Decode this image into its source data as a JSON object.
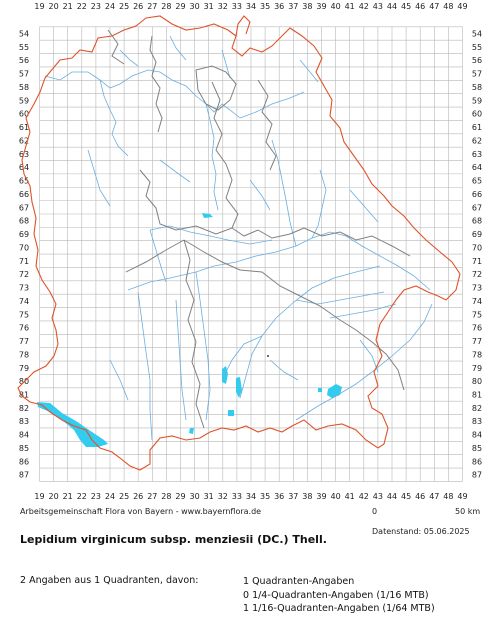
{
  "map": {
    "x_labels": [
      "19",
      "20",
      "21",
      "22",
      "23",
      "24",
      "25",
      "26",
      "27",
      "28",
      "29",
      "30",
      "31",
      "32",
      "33",
      "34",
      "35",
      "36",
      "37",
      "38",
      "39",
      "40",
      "41",
      "42",
      "43",
      "44",
      "45",
      "46",
      "47",
      "48",
      "49"
    ],
    "y_labels": [
      "54",
      "55",
      "56",
      "57",
      "58",
      "59",
      "60",
      "61",
      "62",
      "63",
      "64",
      "65",
      "66",
      "67",
      "68",
      "69",
      "70",
      "71",
      "72",
      "73",
      "74",
      "75",
      "76",
      "77",
      "78",
      "79",
      "80",
      "81",
      "82",
      "83",
      "84",
      "85",
      "86",
      "87"
    ],
    "colors": {
      "grid": "#b8b8b8",
      "border_state": "#e0522a",
      "border_region": "#808080",
      "river": "#6aaee0",
      "lake": "#33ccee"
    }
  },
  "footer": {
    "credit": "Arbeitsgemeinschaft Flora von Bayern - www.bayernflora.de",
    "scale_start": "0",
    "scale_end": "50 km",
    "date": "Datenstand: 05.06.2025",
    "title": "Lepidium virginicum subsp. menziesii (DC.) Thell.",
    "summary": "2 Angaben aus 1 Quadranten, davon:",
    "breakdown": [
      "1 Quadranten-Angaben",
      "0 1/4-Quadranten-Angaben (1/16 MTB)",
      "1 1/16-Quadranten-Angaben (1/64 MTB)"
    ]
  }
}
